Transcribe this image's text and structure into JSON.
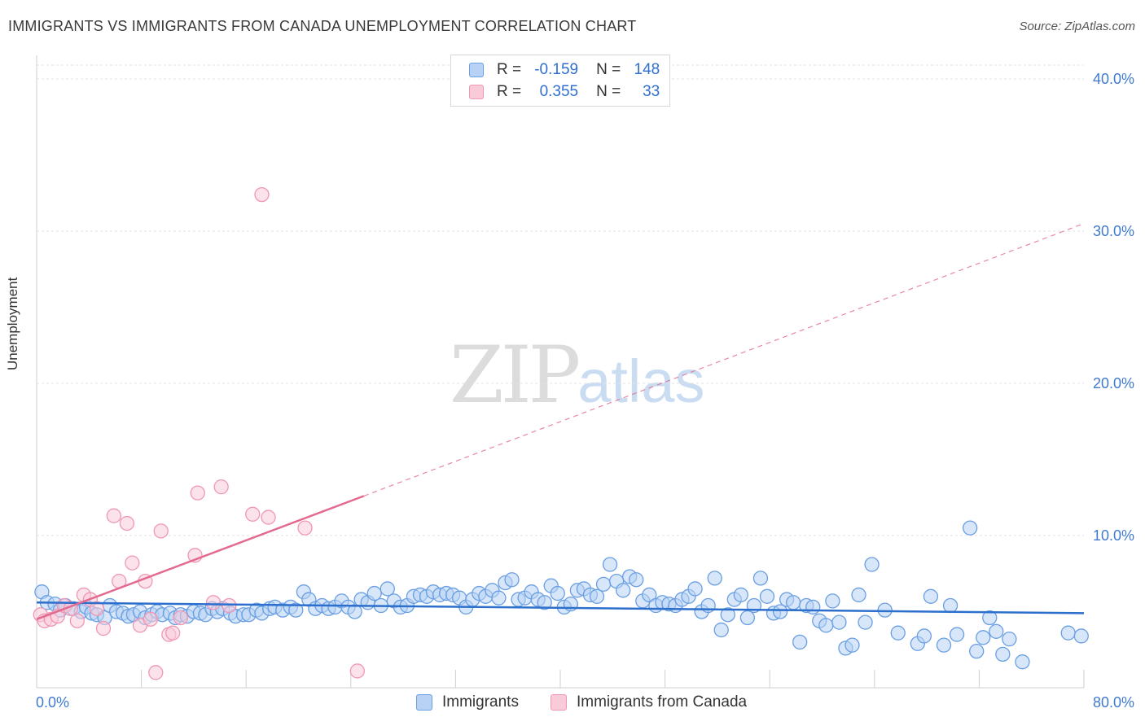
{
  "header": {
    "title": "IMMIGRANTS VS IMMIGRANTS FROM CANADA UNEMPLOYMENT CORRELATION CHART",
    "source": "Source: ZipAtlas.com"
  },
  "legend": {
    "rows": [
      {
        "r_label": "R =",
        "r_value": "-0.159",
        "n_label": "N =",
        "n_value": "148",
        "color": "#a9c9f5",
        "border": "#6fa0e6"
      },
      {
        "r_label": "R =",
        "r_value": "0.355",
        "n_label": "N =",
        "n_value": "33",
        "color": "#f8c4d4",
        "border": "#ee90ae"
      }
    ],
    "bottom": [
      "Immigrants",
      "Immigrants from Canada"
    ]
  },
  "watermark": {
    "zip": "ZIP",
    "atlas": "atlas"
  },
  "colors": {
    "blue_fill": "#b7d2f4",
    "blue_stroke": "#6a9fe3",
    "blue_line": "#2d6fcc",
    "pink_fill": "#f9cbd9",
    "pink_stroke": "#ef97b4",
    "pink_line": "#e4698f",
    "tick_text": "#3f7ad0",
    "grid": "#e2e2e2"
  },
  "chart_data": {
    "type": "scatter",
    "title": "IMMIGRANTS VS IMMIGRANTS FROM CANADA UNEMPLOYMENT CORRELATION CHART",
    "xlabel": "",
    "ylabel": "Unemployment",
    "xlim": [
      0,
      80
    ],
    "ylim": [
      0,
      40
    ],
    "x_tick_labels": [
      "0.0%",
      "80.0%"
    ],
    "y_ticks": [
      10,
      20,
      30,
      40
    ],
    "y_tick_labels": [
      "10.0%",
      "20.0%",
      "30.0%",
      "40.0%"
    ],
    "grid": true,
    "series": [
      {
        "name": "Immigrants",
        "trend": {
          "x": [
            0,
            80
          ],
          "y": [
            5.6,
            4.9
          ],
          "dashed_extension": false
        },
        "points": [
          [
            0.4,
            6.3
          ],
          [
            0.8,
            5.6
          ],
          [
            1.4,
            5.5
          ],
          [
            1.8,
            5.1
          ],
          [
            2.2,
            5.4
          ],
          [
            2.8,
            5.2
          ],
          [
            3.4,
            5.0
          ],
          [
            3.8,
            5.3
          ],
          [
            4.2,
            4.9
          ],
          [
            4.6,
            4.8
          ],
          [
            5.2,
            4.6
          ],
          [
            5.6,
            5.4
          ],
          [
            6.1,
            5.0
          ],
          [
            6.6,
            4.9
          ],
          [
            7.0,
            4.7
          ],
          [
            7.4,
            4.8
          ],
          [
            7.9,
            5.0
          ],
          [
            8.3,
            4.6
          ],
          [
            8.8,
            4.8
          ],
          [
            9.2,
            5.0
          ],
          [
            9.6,
            4.8
          ],
          [
            10.2,
            4.9
          ],
          [
            10.6,
            4.6
          ],
          [
            11.0,
            4.8
          ],
          [
            11.5,
            4.7
          ],
          [
            12.0,
            5.0
          ],
          [
            12.5,
            4.9
          ],
          [
            12.9,
            4.8
          ],
          [
            13.4,
            5.2
          ],
          [
            13.8,
            5.0
          ],
          [
            14.2,
            5.2
          ],
          [
            14.8,
            4.9
          ],
          [
            15.2,
            4.7
          ],
          [
            15.8,
            4.8
          ],
          [
            16.2,
            4.8
          ],
          [
            16.8,
            5.1
          ],
          [
            17.2,
            4.9
          ],
          [
            17.8,
            5.2
          ],
          [
            18.2,
            5.3
          ],
          [
            18.8,
            5.1
          ],
          [
            19.4,
            5.3
          ],
          [
            19.8,
            5.1
          ],
          [
            20.4,
            6.3
          ],
          [
            20.8,
            5.8
          ],
          [
            21.3,
            5.2
          ],
          [
            21.8,
            5.4
          ],
          [
            22.3,
            5.2
          ],
          [
            22.8,
            5.3
          ],
          [
            23.3,
            5.7
          ],
          [
            23.8,
            5.3
          ],
          [
            24.3,
            5.0
          ],
          [
            24.8,
            5.8
          ],
          [
            25.3,
            5.6
          ],
          [
            25.8,
            6.2
          ],
          [
            26.3,
            5.4
          ],
          [
            26.8,
            6.5
          ],
          [
            27.3,
            5.7
          ],
          [
            27.8,
            5.3
          ],
          [
            28.3,
            5.4
          ],
          [
            28.8,
            6.0
          ],
          [
            29.3,
            6.1
          ],
          [
            29.8,
            6.0
          ],
          [
            30.3,
            6.3
          ],
          [
            30.8,
            6.1
          ],
          [
            31.3,
            6.2
          ],
          [
            31.8,
            6.1
          ],
          [
            32.3,
            5.9
          ],
          [
            32.8,
            5.3
          ],
          [
            33.3,
            5.8
          ],
          [
            33.8,
            6.2
          ],
          [
            34.3,
            6.0
          ],
          [
            34.8,
            6.4
          ],
          [
            35.3,
            5.9
          ],
          [
            35.8,
            6.9
          ],
          [
            36.3,
            7.1
          ],
          [
            36.8,
            5.8
          ],
          [
            37.3,
            5.9
          ],
          [
            37.8,
            6.3
          ],
          [
            38.3,
            5.8
          ],
          [
            38.8,
            5.6
          ],
          [
            39.3,
            6.7
          ],
          [
            39.8,
            6.2
          ],
          [
            40.3,
            5.3
          ],
          [
            40.8,
            5.5
          ],
          [
            41.3,
            6.4
          ],
          [
            41.8,
            6.5
          ],
          [
            42.3,
            6.1
          ],
          [
            42.8,
            6.0
          ],
          [
            43.3,
            6.8
          ],
          [
            43.8,
            8.1
          ],
          [
            44.3,
            7.0
          ],
          [
            44.8,
            6.4
          ],
          [
            45.3,
            7.3
          ],
          [
            45.8,
            7.1
          ],
          [
            46.3,
            5.7
          ],
          [
            46.8,
            6.1
          ],
          [
            47.3,
            5.4
          ],
          [
            47.8,
            5.6
          ],
          [
            48.3,
            5.5
          ],
          [
            48.8,
            5.4
          ],
          [
            49.3,
            5.8
          ],
          [
            49.8,
            6.0
          ],
          [
            50.3,
            6.5
          ],
          [
            50.8,
            5.0
          ],
          [
            51.3,
            5.4
          ],
          [
            51.8,
            7.2
          ],
          [
            52.3,
            3.8
          ],
          [
            52.8,
            4.8
          ],
          [
            53.3,
            5.8
          ],
          [
            53.8,
            6.1
          ],
          [
            54.3,
            4.6
          ],
          [
            54.8,
            5.4
          ],
          [
            55.3,
            7.2
          ],
          [
            55.8,
            6.0
          ],
          [
            56.3,
            4.9
          ],
          [
            56.8,
            5.0
          ],
          [
            57.3,
            5.8
          ],
          [
            57.8,
            5.6
          ],
          [
            58.3,
            3.0
          ],
          [
            58.8,
            5.4
          ],
          [
            59.3,
            5.3
          ],
          [
            59.8,
            4.4
          ],
          [
            60.3,
            4.1
          ],
          [
            60.8,
            5.7
          ],
          [
            61.3,
            4.3
          ],
          [
            61.8,
            2.6
          ],
          [
            62.3,
            2.8
          ],
          [
            62.8,
            6.1
          ],
          [
            63.3,
            4.3
          ],
          [
            63.8,
            8.1
          ],
          [
            64.8,
            5.1
          ],
          [
            65.8,
            3.6
          ],
          [
            67.3,
            2.9
          ],
          [
            67.8,
            3.4
          ],
          [
            68.3,
            6.0
          ],
          [
            69.3,
            2.8
          ],
          [
            69.8,
            5.4
          ],
          [
            70.3,
            3.5
          ],
          [
            71.3,
            10.5
          ],
          [
            71.8,
            2.4
          ],
          [
            72.3,
            3.3
          ],
          [
            72.8,
            4.6
          ],
          [
            73.3,
            3.7
          ],
          [
            73.8,
            2.2
          ],
          [
            74.3,
            3.2
          ],
          [
            75.3,
            1.7
          ],
          [
            78.8,
            3.6
          ],
          [
            79.8,
            3.4
          ]
        ]
      },
      {
        "name": "Immigrants from Canada",
        "trend": {
          "x": [
            0,
            25
          ],
          "y": [
            4.5,
            12.6
          ],
          "dashed_extension_to": [
            80,
            30.5
          ]
        },
        "points": [
          [
            0.3,
            4.8
          ],
          [
            0.6,
            4.4
          ],
          [
            1.1,
            4.5
          ],
          [
            1.6,
            4.7
          ],
          [
            2.1,
            5.4
          ],
          [
            2.6,
            5.2
          ],
          [
            3.1,
            4.4
          ],
          [
            3.6,
            6.1
          ],
          [
            4.1,
            5.8
          ],
          [
            4.6,
            5.2
          ],
          [
            5.1,
            3.9
          ],
          [
            5.9,
            11.3
          ],
          [
            6.3,
            7.0
          ],
          [
            6.9,
            10.8
          ],
          [
            7.3,
            8.2
          ],
          [
            7.9,
            4.1
          ],
          [
            8.3,
            7.0
          ],
          [
            8.7,
            4.5
          ],
          [
            9.1,
            1.0
          ],
          [
            9.5,
            10.3
          ],
          [
            10.1,
            3.5
          ],
          [
            10.4,
            3.6
          ],
          [
            11.0,
            4.6
          ],
          [
            12.1,
            8.7
          ],
          [
            12.3,
            12.8
          ],
          [
            13.5,
            5.6
          ],
          [
            14.1,
            13.2
          ],
          [
            14.7,
            5.4
          ],
          [
            16.5,
            11.4
          ],
          [
            17.7,
            11.2
          ],
          [
            17.2,
            32.4
          ],
          [
            20.5,
            10.5
          ],
          [
            24.5,
            1.1
          ]
        ]
      }
    ]
  }
}
